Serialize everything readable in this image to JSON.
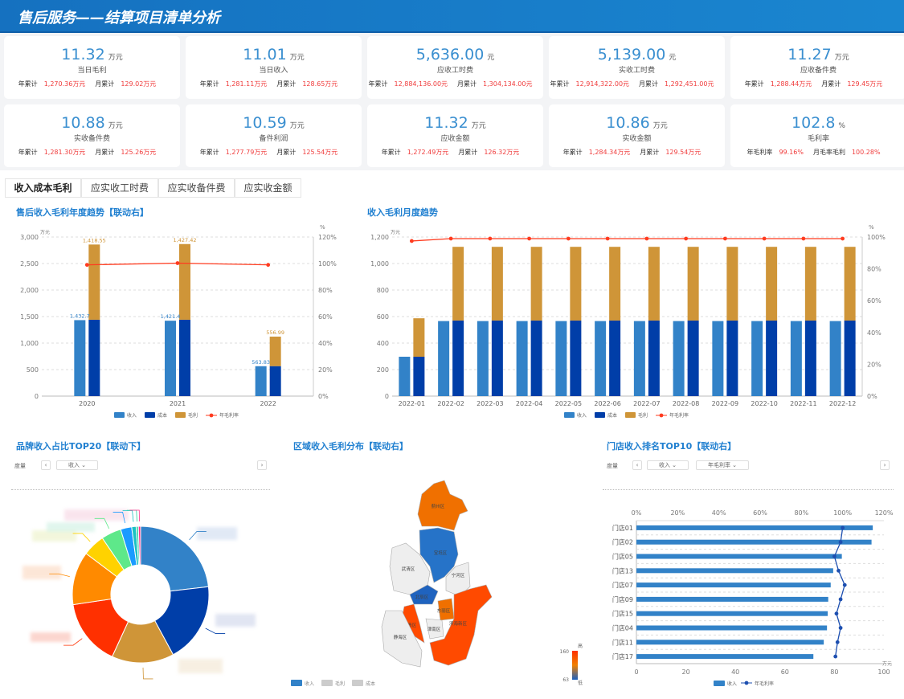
{
  "header": {
    "title": "售后服务——结算项目清单分析"
  },
  "cards": [
    {
      "value": "11.32",
      "unit": "万元",
      "label": "当日毛利",
      "y_label": "年累计",
      "y_val": "1,270.36万元",
      "m_label": "月累计",
      "m_val": "129.02万元"
    },
    {
      "value": "11.01",
      "unit": "万元",
      "label": "当日收入",
      "y_label": "年累计",
      "y_val": "1,281.11万元",
      "m_label": "月累计",
      "m_val": "128.65万元"
    },
    {
      "value": "5,636.00",
      "unit": "元",
      "label": "应收工时费",
      "y_label": "年累计",
      "y_val": "12,884,136.00元",
      "m_label": "月累计",
      "m_val": "1,304,134.00元"
    },
    {
      "value": "5,139.00",
      "unit": "元",
      "label": "实收工时费",
      "y_label": "年累计",
      "y_val": "12,914,322.00元",
      "m_label": "月累计",
      "m_val": "1,292,451.00元"
    },
    {
      "value": "11.27",
      "unit": "万元",
      "label": "应收备件费",
      "y_label": "年累计",
      "y_val": "1,288.44万元",
      "m_label": "月累计",
      "m_val": "129.45万元"
    },
    {
      "value": "10.88",
      "unit": "万元",
      "label": "实收备件费",
      "y_label": "年累计",
      "y_val": "1,281.30万元",
      "m_label": "月累计",
      "m_val": "125.26万元"
    },
    {
      "value": "10.59",
      "unit": "万元",
      "label": "备件利润",
      "y_label": "年累计",
      "y_val": "1,277.79万元",
      "m_label": "月累计",
      "m_val": "125.54万元"
    },
    {
      "value": "11.32",
      "unit": "万元",
      "label": "应收金额",
      "y_label": "年累计",
      "y_val": "1,272.49万元",
      "m_label": "月累计",
      "m_val": "126.32万元"
    },
    {
      "value": "10.86",
      "unit": "万元",
      "label": "实收金额",
      "y_label": "年累计",
      "y_val": "1,284.34万元",
      "m_label": "月累计",
      "m_val": "129.54万元"
    },
    {
      "value": "102.8",
      "unit": "%",
      "label": "毛利率",
      "y_label": "年毛利率",
      "y_val": "99.16%",
      "m_label": "月毛率毛利",
      "m_val": "100.28%"
    }
  ],
  "tabs": [
    "收入成本毛利",
    "应实收工时费",
    "应实收备件费",
    "应实收金额"
  ],
  "colors": {
    "income": "#3282c8",
    "cost": "#003ea8",
    "profit": "#cf9538",
    "rate": "#ff3b1f",
    "store_rate": "#1d4fb0"
  },
  "legend": {
    "income": "收入",
    "cost": "成本",
    "profit": "毛利",
    "rate": "年毛利率"
  },
  "chart_data": [
    {
      "type": "bar",
      "title": "售后收入毛利年度趋势【联动右】",
      "y_unit": "万元",
      "y2_unit": "%",
      "ylim": [
        0,
        3000
      ],
      "y2lim": [
        0,
        120
      ],
      "yticks": [
        "0",
        "500",
        "1,000",
        "1,500",
        "2,000",
        "2,500",
        "3,000"
      ],
      "y2ticks": [
        "0%",
        "20%",
        "40%",
        "60%",
        "80%",
        "100%",
        "120%"
      ],
      "categories": [
        "2020",
        "2021",
        "2022"
      ],
      "series": [
        {
          "name": "收入",
          "values": [
            1432.7,
            1421.4,
            563.83
          ],
          "labels": [
            "1,432.7",
            "1,421.4",
            "563.83"
          ]
        },
        {
          "name": "成本",
          "values": [
            1440,
            1440,
            565
          ]
        },
        {
          "name": "毛利",
          "values": [
            1418.55,
            1427.42,
            556.99
          ],
          "labels": [
            "1,418.55",
            "1,427.42",
            "556.99"
          ]
        },
        {
          "name": "年毛利率",
          "values": [
            99,
            100.3,
            99
          ]
        }
      ]
    },
    {
      "type": "bar",
      "title": "收入毛利月度趋势",
      "y_unit": "万元",
      "y2_unit": "%",
      "ylim": [
        0,
        1200
      ],
      "y2lim": [
        0,
        100
      ],
      "yticks": [
        "0",
        "200",
        "400",
        "600",
        "800",
        "1,000",
        "1,200"
      ],
      "y2ticks": [
        "0%",
        "20%",
        "40%",
        "60%",
        "80%",
        "100%"
      ],
      "categories": [
        "2022-01",
        "2022-02",
        "2022-03",
        "2022-04",
        "2022-05",
        "2022-06",
        "2022-07",
        "2022-08",
        "2022-09",
        "2022-10",
        "2022-11",
        "2022-12"
      ],
      "series": [
        {
          "name": "收入",
          "values": [
            297,
            566,
            566,
            566,
            566,
            566,
            566,
            566,
            566,
            566,
            566,
            566
          ]
        },
        {
          "name": "成本",
          "values": [
            297,
            570,
            570,
            570,
            570,
            570,
            570,
            570,
            570,
            570,
            570,
            570
          ]
        },
        {
          "name": "毛利",
          "values": [
            290,
            556,
            556,
            556,
            556,
            556,
            556,
            556,
            556,
            556,
            556,
            556
          ]
        },
        {
          "name": "年毛利率",
          "values": [
            97.5,
            99,
            99,
            99,
            99,
            99,
            99,
            99,
            99,
            99,
            99,
            99
          ]
        }
      ]
    },
    {
      "type": "pie",
      "title": "品牌收入占比TOP20【联动下】",
      "values": [
        22,
        18,
        14,
        15,
        12,
        5,
        4.5,
        2.5,
        1,
        0.5,
        0.5
      ],
      "colors": [
        "#3282c8",
        "#003ea8",
        "#cf9538",
        "#ff3000",
        "#ff8a00",
        "#ffd200",
        "#5ee88a",
        "#1a9bff",
        "#19c2c2",
        "#2ad0a0",
        "#ff2f8a"
      ]
    },
    {
      "type": "map",
      "title": "区域收入毛利分布【联动右】",
      "regions": [
        "蓟州区",
        "宝坻区",
        "武清区",
        "宁河区",
        "北辰区",
        "东丽区",
        "西青区",
        "津南区",
        "滨海新区",
        "静海区"
      ],
      "visual_max": "160",
      "visual_min": "63",
      "visual_high": "高",
      "visual_low": "低"
    },
    {
      "type": "bar",
      "title": "门店收入排名TOP10【联动右】",
      "xlim": [
        0,
        100
      ],
      "x_unit": "万元",
      "x2lim": [
        0,
        120
      ],
      "xticks": [
        "0",
        "20",
        "40",
        "60",
        "80",
        "100"
      ],
      "x2ticks": [
        "0%",
        "20%",
        "40%",
        "60%",
        "80%",
        "100%",
        "120%"
      ],
      "categories": [
        "门店01",
        "门店02",
        "门店05",
        "门店13",
        "门店07",
        "门店09",
        "门店15",
        "门店04",
        "门店11",
        "门店17"
      ],
      "series": [
        {
          "name": "收入",
          "values": [
            95.5,
            95,
            83,
            79.5,
            78.5,
            77.5,
            77.3,
            77,
            75.7,
            71.5
          ]
        },
        {
          "name": "年毛利率",
          "values": [
            100,
            99,
            96,
            98,
            101,
            99,
            97,
            99,
            97.5,
            96.5
          ]
        }
      ]
    }
  ],
  "controls": {
    "measure": "度量",
    "income": "收入",
    "rate": "年毛利率"
  },
  "map_legend": [
    "收入",
    "毛利",
    "成本"
  ]
}
